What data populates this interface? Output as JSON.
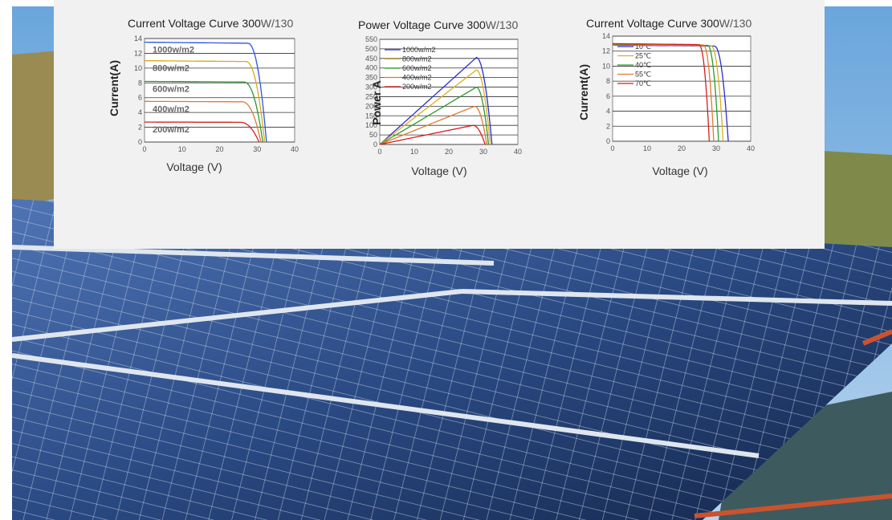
{
  "photo": {
    "description_icon": "solar-panels-photo",
    "sky_color": "#7db2de",
    "panel_color": "#1f3a66",
    "frame_color": "#d8dee6",
    "hill_color": "#9a8b52"
  },
  "chart_data": [
    {
      "type": "line",
      "title_bold": "Current Voltage Curve 300",
      "title_light": "W/130",
      "xlabel": "Voltage (V)",
      "ylabel": "Current(A)",
      "xlim": [
        0,
        40
      ],
      "ylim": [
        0,
        14
      ],
      "xticks": [
        "0",
        "10",
        "20",
        "30",
        "40"
      ],
      "yticks": [
        "0",
        "2",
        "4",
        "6",
        "8",
        "10",
        "12",
        "14"
      ],
      "grid": "horizontal",
      "legend": "inline-labels",
      "series": [
        {
          "name": "1000w/m2",
          "color": "#2b53e6",
          "isc": 13.5,
          "voc": 32.5,
          "knee": 27.5
        },
        {
          "name": "800w/m2",
          "color": "#d8a818",
          "isc": 11.0,
          "voc": 32.0,
          "knee": 27.0
        },
        {
          "name": "600w/m2",
          "color": "#2a9a2a",
          "isc": 8.2,
          "voc": 31.5,
          "knee": 26.5
        },
        {
          "name": "400w/m2",
          "color": "#e07a30",
          "isc": 5.5,
          "voc": 31.0,
          "knee": 26.0
        },
        {
          "name": "200w/m2",
          "color": "#d61e1e",
          "isc": 2.7,
          "voc": 30.5,
          "knee": 25.5
        }
      ]
    },
    {
      "type": "line",
      "title_bold": "Power Voltage Curve  300",
      "title_light": "W/130",
      "xlabel": "Voltage (V)",
      "ylabel": "Power   A",
      "xlim": [
        0,
        40
      ],
      "ylim": [
        0,
        550
      ],
      "xticks": [
        "0",
        "10",
        "20",
        "30",
        "40"
      ],
      "yticks": [
        "0",
        "50",
        "100",
        "150",
        "200",
        "250",
        "300",
        "350",
        "400",
        "450",
        "500",
        "550"
      ],
      "grid": "horizontal",
      "legend": "top-left",
      "series": [
        {
          "name": "1000w/m2",
          "color": "#2b2bd6",
          "pmax": 455,
          "vmp": 28.0,
          "voc": 32.5
        },
        {
          "name": "800w/m2",
          "color": "#d8b020",
          "pmax": 390,
          "vmp": 28.0,
          "voc": 32.0
        },
        {
          "name": "600w/m2",
          "color": "#2a9a2a",
          "pmax": 300,
          "vmp": 28.0,
          "voc": 31.5
        },
        {
          "name": "400w/m2",
          "color": "#e07a30",
          "pmax": 200,
          "vmp": 27.5,
          "voc": 31.0
        },
        {
          "name": "200w/m2",
          "color": "#d61e1e",
          "pmax": 100,
          "vmp": 27.0,
          "voc": 30.5
        }
      ]
    },
    {
      "type": "line",
      "title_bold": "Current Voltage Curve  300",
      "title_light": "W/130",
      "xlabel": "Voltage (V)",
      "ylabel": "Current(A)",
      "xlim": [
        0,
        40
      ],
      "ylim": [
        0,
        14
      ],
      "xticks": [
        "0",
        "10",
        "20",
        "30",
        "40"
      ],
      "yticks": [
        "0",
        "2",
        "4",
        "6",
        "8",
        "10",
        "12",
        "14"
      ],
      "grid": "horizontal",
      "legend": "top-left",
      "series": [
        {
          "name": "10℃",
          "color": "#2b2bd6",
          "isc": 12.8,
          "voc": 33.5,
          "knee": 29.5
        },
        {
          "name": "25℃",
          "color": "#d8b020",
          "isc": 12.85,
          "voc": 32.0,
          "knee": 28.5
        },
        {
          "name": "40℃",
          "color": "#2a9a2a",
          "isc": 12.9,
          "voc": 30.7,
          "knee": 27.5
        },
        {
          "name": "55℃",
          "color": "#e07a30",
          "isc": 12.95,
          "voc": 29.3,
          "knee": 26.3
        },
        {
          "name": "70℃",
          "color": "#d61e1e",
          "isc": 13.0,
          "voc": 28.0,
          "knee": 25.0
        }
      ]
    }
  ]
}
